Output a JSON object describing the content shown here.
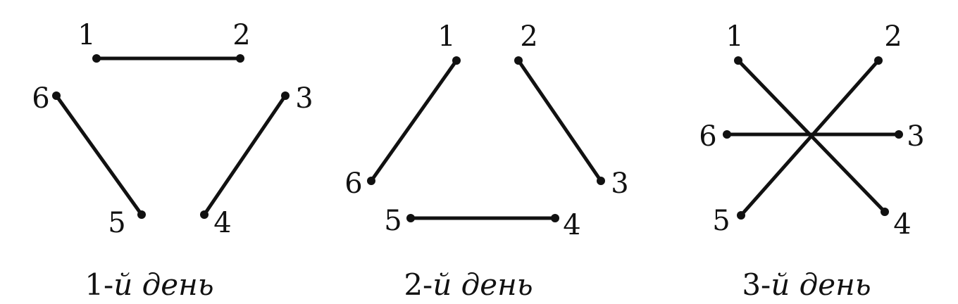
{
  "diagrams": [
    {
      "caption_prefix": "1-",
      "caption_day": "й день",
      "vertex_labels": [
        "1",
        "2",
        "3",
        "4",
        "5",
        "6"
      ],
      "edges": [
        [
          "1",
          "2"
        ],
        [
          "6",
          "5"
        ],
        [
          "3",
          "4"
        ]
      ]
    },
    {
      "caption_prefix": "2-",
      "caption_day": "й день",
      "vertex_labels": [
        "1",
        "2",
        "3",
        "4",
        "5",
        "6"
      ],
      "edges": [
        [
          "1",
          "6"
        ],
        [
          "2",
          "3"
        ],
        [
          "5",
          "4"
        ]
      ]
    },
    {
      "caption_prefix": "3-",
      "caption_day": "й день",
      "vertex_labels": [
        "1",
        "2",
        "3",
        "4",
        "5",
        "6"
      ],
      "edges": [
        [
          "1",
          "4"
        ],
        [
          "2",
          "5"
        ],
        [
          "6",
          "3"
        ]
      ]
    }
  ]
}
